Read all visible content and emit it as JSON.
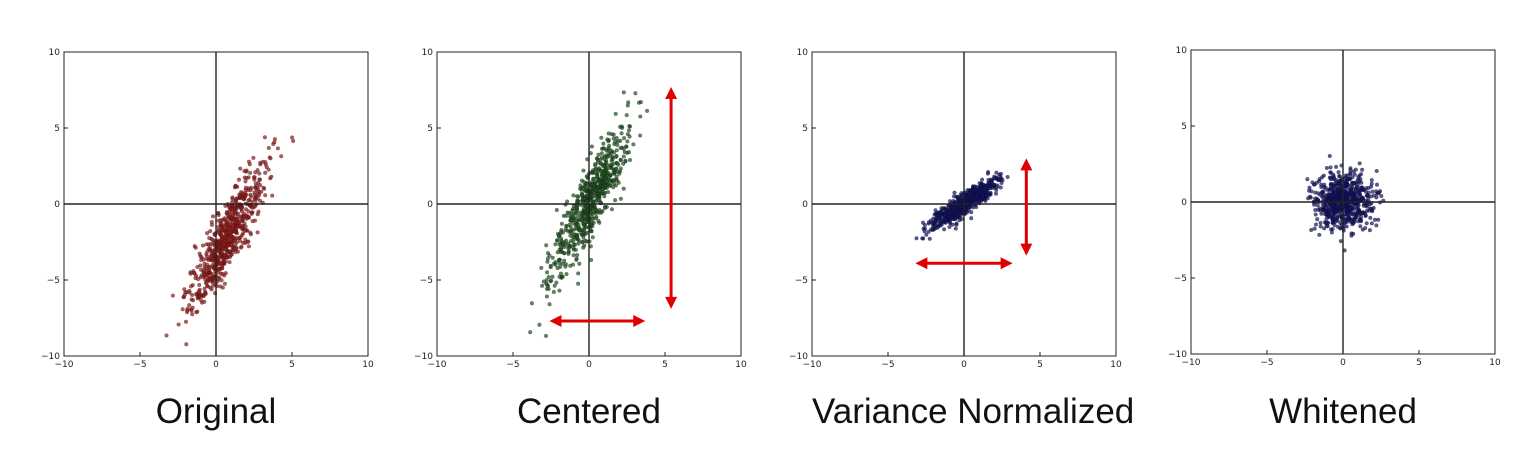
{
  "charts": [
    {
      "caption": "Original",
      "chart_data": {
        "type": "scatter",
        "title": "",
        "xlabel": "",
        "ylabel": "",
        "xlim": [
          -10,
          10
        ],
        "ylim": [
          -10,
          10
        ],
        "xticks": [
          "−10",
          "−5",
          "0",
          "5",
          "10"
        ],
        "yticks": [
          "10",
          "5",
          "0",
          "−5",
          "−10"
        ],
        "cloud": {
          "mean": [
            0.7,
            -2.2
          ],
          "sd_major": 2.6,
          "sd_minor": 0.55,
          "angle_deg": 64,
          "n": 650
        },
        "point_color": "#8b1a1a",
        "arrows": []
      }
    },
    {
      "caption": "Centered",
      "chart_data": {
        "type": "scatter",
        "title": "",
        "xlabel": "",
        "ylabel": "",
        "xlim": [
          -10,
          10
        ],
        "ylim": [
          -10,
          10
        ],
        "xticks": [
          "−10",
          "−5",
          "0",
          "5",
          "10"
        ],
        "yticks": [
          "10",
          "5",
          "0",
          "−5",
          "−10"
        ],
        "cloud": {
          "mean": [
            0,
            0
          ],
          "sd_major": 2.8,
          "sd_minor": 0.55,
          "angle_deg": 64,
          "n": 650
        },
        "point_color": "#1f4d1f",
        "arrows": [
          {
            "from": [
              -2.6,
              -7.7
            ],
            "to": [
              3.7,
              -7.7
            ]
          },
          {
            "from": [
              5.4,
              7.7
            ],
            "to": [
              5.4,
              -6.9
            ]
          }
        ]
      }
    },
    {
      "caption": "Variance Normalized",
      "chart_data": {
        "type": "scatter",
        "title": "",
        "xlabel": "",
        "ylabel": "",
        "xlim": [
          -10,
          10
        ],
        "ylim": [
          -10,
          10
        ],
        "xticks": [
          "−10",
          "−5",
          "0",
          "5",
          "10"
        ],
        "yticks": [
          "10",
          "5",
          "0",
          "−5",
          "−10"
        ],
        "cloud": {
          "mean": [
            0,
            0
          ],
          "sd_major": 1.35,
          "sd_minor": 0.3,
          "angle_deg": 36,
          "n": 650
        },
        "point_color": "#14145e",
        "arrows": [
          {
            "from": [
              -3.2,
              -3.9
            ],
            "to": [
              3.2,
              -3.9
            ]
          },
          {
            "from": [
              4.1,
              3.0
            ],
            "to": [
              4.1,
              -3.4
            ]
          }
        ]
      }
    },
    {
      "caption": "Whitened",
      "chart_data": {
        "type": "scatter",
        "title": "",
        "xlabel": "",
        "ylabel": "",
        "xlim": [
          -10,
          10
        ],
        "ylim": [
          -10,
          10
        ],
        "xticks": [
          "−10",
          "−5",
          "0",
          "5",
          "10"
        ],
        "yticks": [
          "10",
          "5",
          "0",
          "−5",
          "−10"
        ],
        "cloud": {
          "mean": [
            0,
            0
          ],
          "sd_major": 0.95,
          "sd_minor": 0.95,
          "angle_deg": 0,
          "n": 650
        },
        "point_color": "#14145e",
        "arrows": []
      }
    }
  ],
  "colors": {
    "arrow": "#e00000",
    "frame": "#222222",
    "axis": "#222222"
  }
}
